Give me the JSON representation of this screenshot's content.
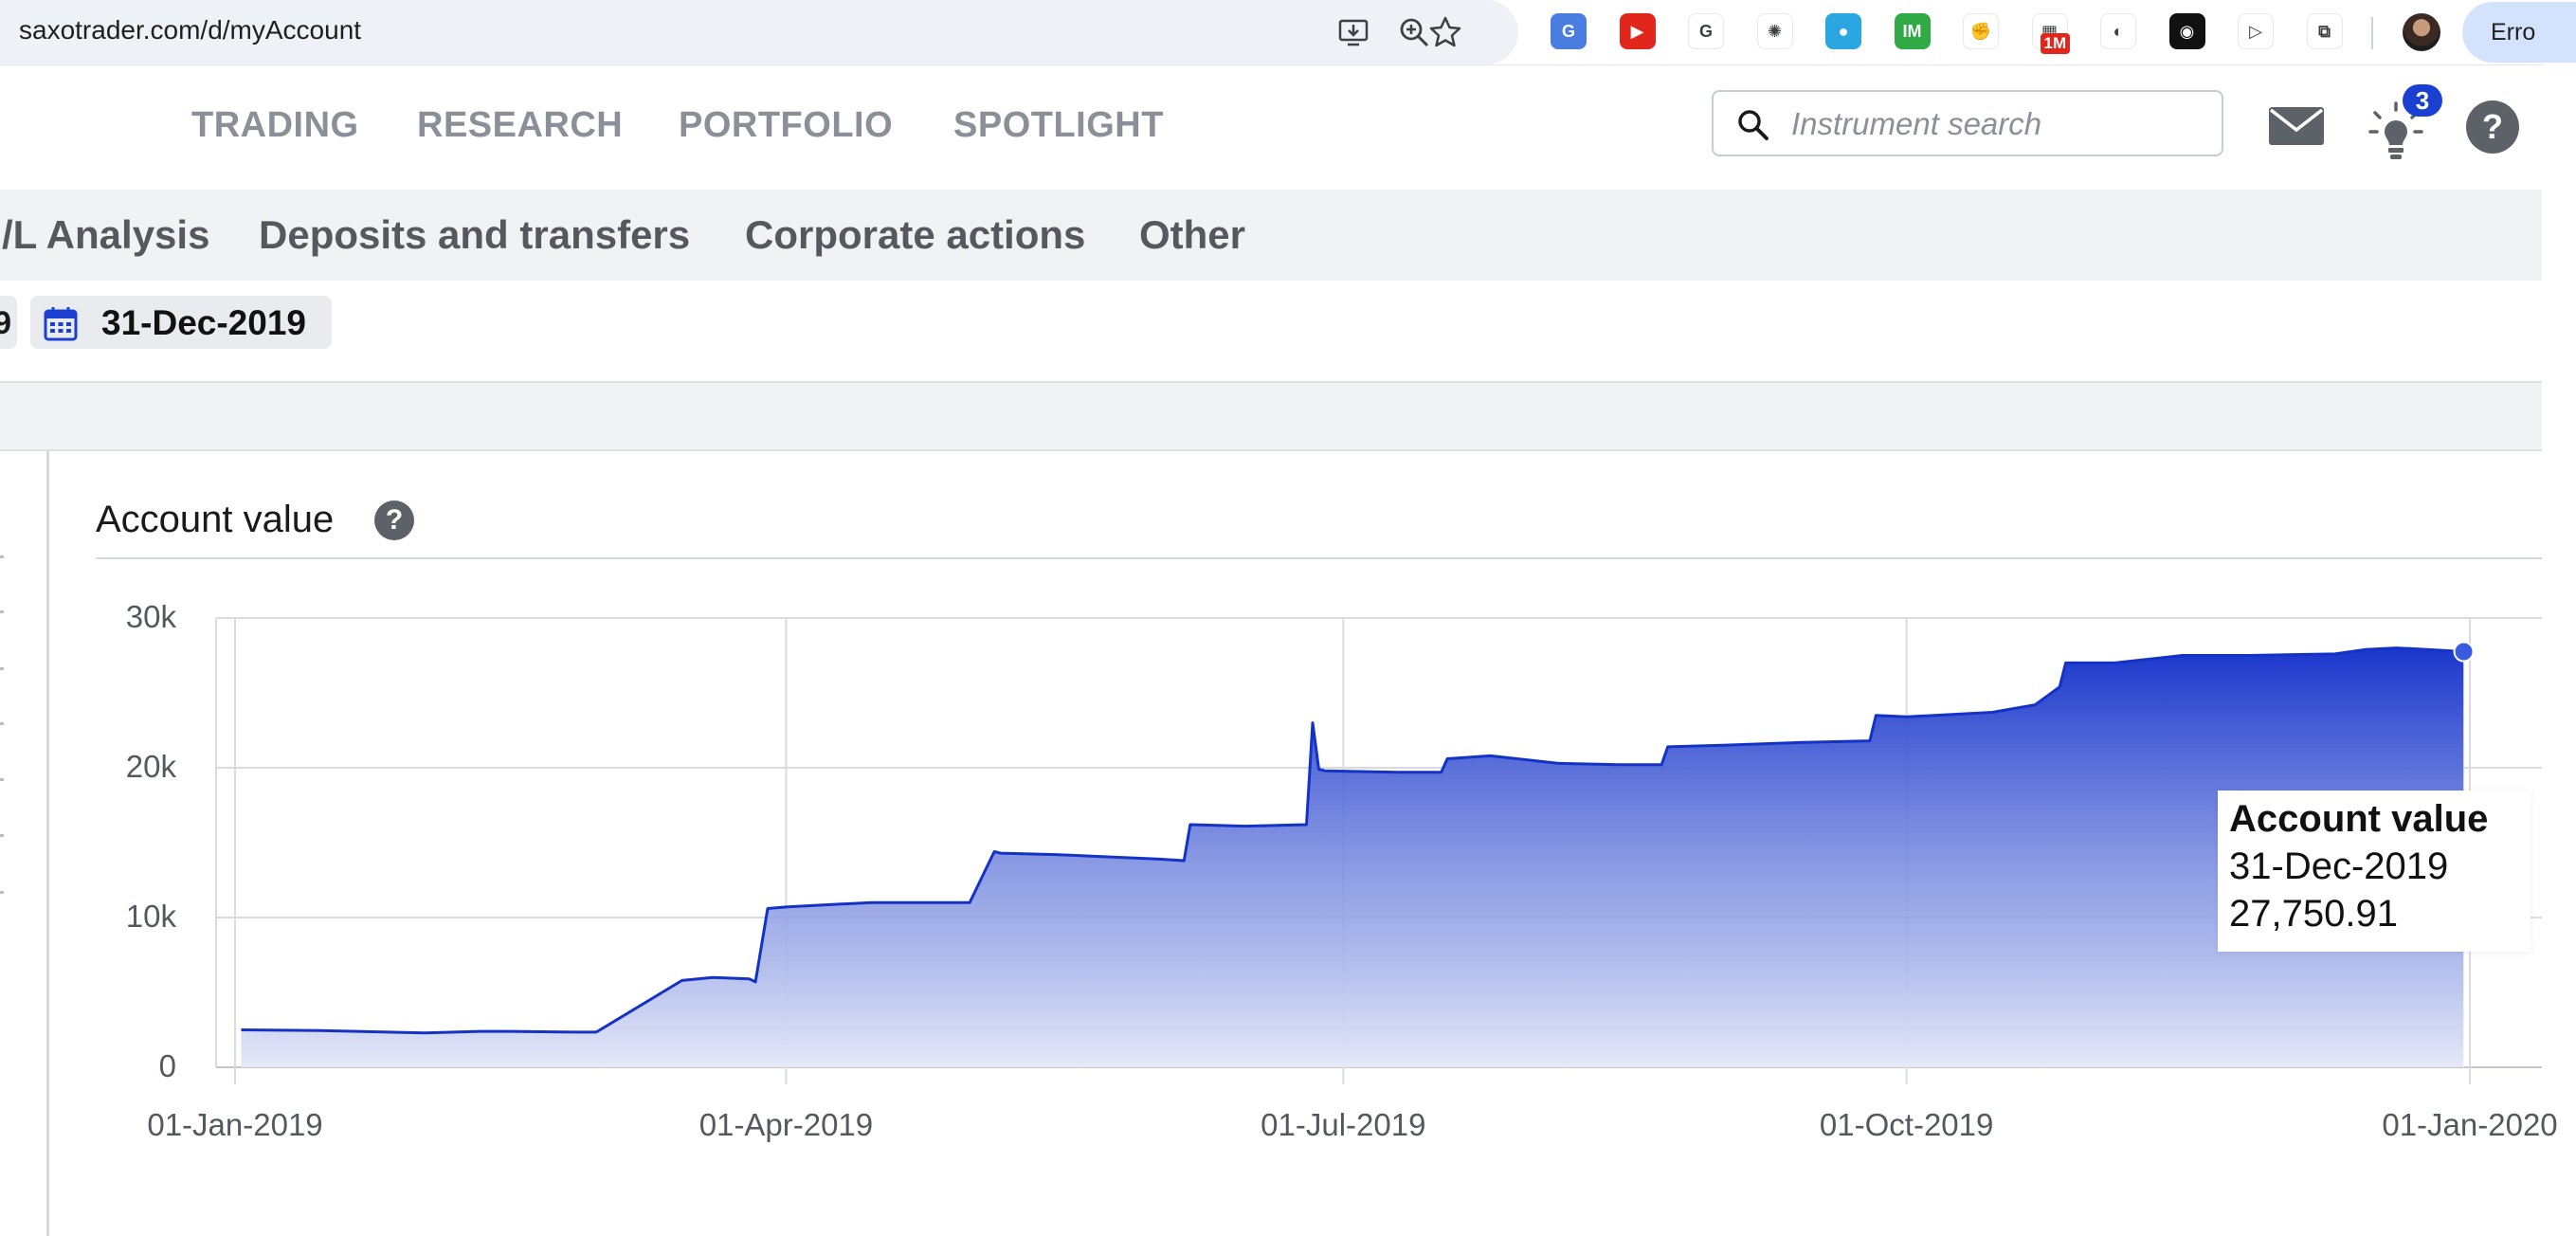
{
  "browser": {
    "url": "saxotrader.com/d/myAccount",
    "extension_badge": "1M",
    "profile_button_label": "Erro",
    "extensions": [
      {
        "name": "translate-extension",
        "color": "#4a7de0",
        "glyph": "G"
      },
      {
        "name": "video-extension",
        "color": "#e3261b",
        "glyph": "▶"
      },
      {
        "name": "google-extension",
        "color": "#ffffff",
        "glyph": "G"
      },
      {
        "name": "chatgpt-extension",
        "color": "#ffffff",
        "glyph": "✺"
      },
      {
        "name": "blue-orb-extension",
        "color": "#2aa6e0",
        "glyph": "●"
      },
      {
        "name": "im-extension",
        "color": "#2faa44",
        "glyph": "IM"
      },
      {
        "name": "fist-extension",
        "color": "#ffffff",
        "glyph": "✊"
      },
      {
        "name": "calendar-extension",
        "color": "#ffffff",
        "glyph": "▦"
      },
      {
        "name": "swirl-extension",
        "color": "#ffffff",
        "glyph": "◐"
      },
      {
        "name": "dark-extension",
        "color": "#111111",
        "glyph": "◉"
      },
      {
        "name": "arrow-extension",
        "color": "#ffffff",
        "glyph": "▷"
      },
      {
        "name": "puzzle-extension",
        "color": "#ffffff",
        "glyph": "⧉"
      }
    ]
  },
  "main_nav": {
    "items": [
      "TRADING",
      "RESEARCH",
      "PORTFOLIO",
      "SPOTLIGHT"
    ]
  },
  "search": {
    "placeholder": "Instrument search"
  },
  "notifications": {
    "count": "3"
  },
  "sub_nav": {
    "items": [
      "/L Analysis",
      "Deposits and transfers",
      "Corporate actions",
      "Other"
    ]
  },
  "date_range": {
    "from_partial": "9",
    "to": "31-Dec-2019"
  },
  "card": {
    "title": "Account value",
    "help_label": "?"
  },
  "tooltip": {
    "title": "Account value",
    "date": "31-Dec-2019",
    "value": "27,750.91"
  },
  "colors": {
    "accent": "#1b40d1",
    "line": "#1433c6",
    "grid": "#d9dbe0"
  },
  "chart_data": {
    "type": "area",
    "title": "Account value",
    "xlabel": "",
    "ylabel": "",
    "ylim": [
      0,
      30000
    ],
    "y_ticks": [
      0,
      10000,
      20000,
      30000
    ],
    "y_tick_labels": [
      "0",
      "10k",
      "20k",
      "30k"
    ],
    "x_tick_labels": [
      "01-Jan-2019",
      "01-Apr-2019",
      "01-Jul-2019",
      "01-Oct-2019",
      "01-Jan-2020"
    ],
    "grid": true,
    "legend": "none",
    "series": [
      {
        "x": [
          "2019-01-02",
          "2019-01-15",
          "2019-02-01",
          "2019-02-10",
          "2019-02-15",
          "2019-02-25",
          "2019-03-01",
          "2019-03-15",
          "2019-03-20",
          "2019-03-26",
          "2019-03-27",
          "2019-03-29",
          "2019-04-01",
          "2019-04-10",
          "2019-04-15",
          "2019-04-20",
          "2019-05-01",
          "2019-05-05",
          "2019-05-06",
          "2019-05-15",
          "2019-06-01",
          "2019-06-05",
          "2019-06-06",
          "2019-06-15",
          "2019-06-25",
          "2019-06-26",
          "2019-06-27",
          "2019-06-28",
          "2019-07-10",
          "2019-07-17",
          "2019-07-18",
          "2019-07-25",
          "2019-08-05",
          "2019-08-15",
          "2019-08-22",
          "2019-08-23",
          "2019-09-01",
          "2019-09-15",
          "2019-09-25",
          "2019-09-26",
          "2019-10-01",
          "2019-10-15",
          "2019-10-22",
          "2019-10-26",
          "2019-10-27",
          "2019-11-03",
          "2019-11-04",
          "2019-11-15",
          "2019-11-25",
          "2019-11-26",
          "2019-12-10",
          "2019-12-15",
          "2019-12-20",
          "2019-12-25",
          "2019-12-31"
        ],
        "y": [
          2500,
          2450,
          2300,
          2400,
          2400,
          2350,
          2350,
          5800,
          6000,
          5900,
          5700,
          10600,
          10700,
          10900,
          11000,
          11000,
          11000,
          14400,
          14300,
          14200,
          13900,
          13800,
          16200,
          16100,
          16200,
          23000,
          19900,
          19800,
          19700,
          19700,
          20600,
          20800,
          20300,
          20200,
          20200,
          21400,
          21500,
          21700,
          21800,
          23500,
          23400,
          23700,
          24200,
          25400,
          27000,
          27000,
          27000,
          27500,
          27500,
          27500,
          27600,
          27900,
          28000,
          27900,
          27750.91
        ]
      }
    ]
  }
}
